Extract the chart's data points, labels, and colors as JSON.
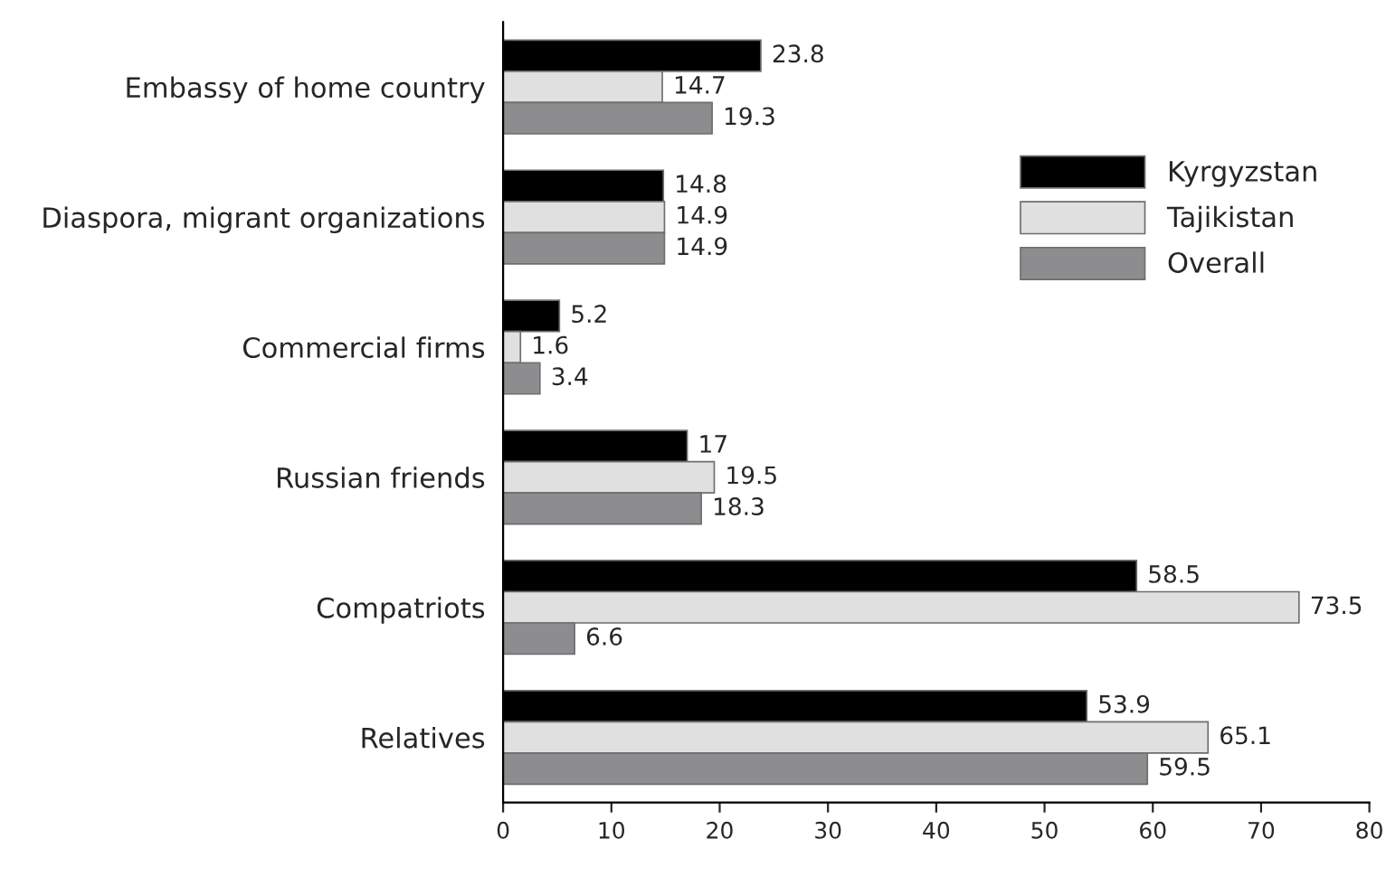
{
  "chart_data": {
    "type": "bar",
    "orientation": "horizontal",
    "categories": [
      "Embassy of home country",
      "Diaspora, migrant organizations",
      "Commercial firms",
      "Russian friends",
      "Compatriots",
      "Relatives"
    ],
    "series": [
      {
        "name": "Kyrgyzstan",
        "color": "#000000",
        "values": [
          23.8,
          14.8,
          5.2,
          17,
          58.5,
          53.9
        ]
      },
      {
        "name": "Tajikistan",
        "color": "#e0e0e0",
        "values": [
          14.7,
          14.9,
          1.6,
          19.5,
          73.5,
          65.1
        ]
      },
      {
        "name": "Overall",
        "color": "#8d8d8f",
        "values": [
          19.3,
          14.9,
          3.4,
          18.3,
          6.6,
          59.5
        ]
      }
    ],
    "xlim": [
      0,
      80
    ],
    "xticks": [
      0,
      10,
      20,
      30,
      40,
      50,
      60,
      70,
      80
    ],
    "data_labels": true,
    "legend": "top right",
    "grid": false
  }
}
